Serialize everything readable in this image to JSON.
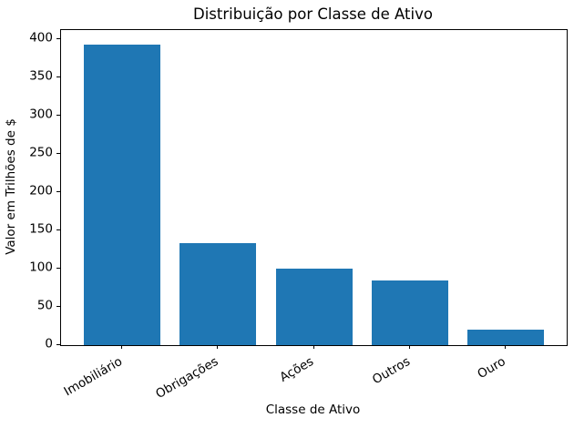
{
  "figure": {
    "background": "#ffffff",
    "text_color": "#000000",
    "spine_color": "#000000"
  },
  "chart_data": {
    "type": "bar",
    "title": "Distribuição por Classe de Ativo",
    "xlabel": "Classe de Ativo",
    "ylabel": "Valor em Trilhões de $",
    "categories": [
      "Imobiliário",
      "Obrigações",
      "Ações",
      "Outros",
      "Ouro"
    ],
    "values": [
      393,
      133,
      100,
      85,
      20
    ],
    "yticks": [
      0,
      50,
      100,
      150,
      200,
      250,
      300,
      350,
      400
    ],
    "ylim": [
      0,
      412
    ],
    "bar_color": "#1f77b4",
    "grid": false,
    "legend": null,
    "xtick_rotation_deg": 30
  }
}
